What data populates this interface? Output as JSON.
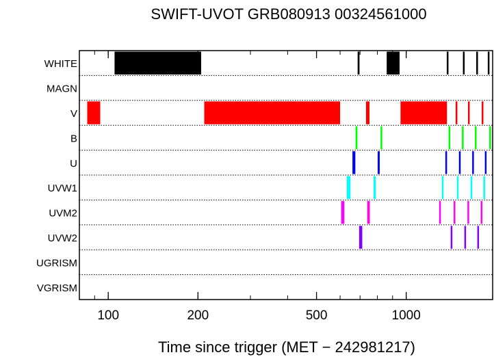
{
  "chart_data": {
    "type": "timeline",
    "title": "SWIFT-UVOT GRB080913 00324561000",
    "xlabel": "Time since trigger (MET − 242981217)",
    "ylabel": "",
    "x_scale": "log",
    "xlim": [
      80,
      1950
    ],
    "x_ticks": [
      100,
      200,
      500,
      1000
    ],
    "x_tick_labels": [
      "100",
      "200",
      "500",
      "1000"
    ],
    "grid": "dotted row separators",
    "rows": [
      {
        "label": "WHITE",
        "color": "#000000",
        "intervals": [
          [
            105,
            205
          ],
          [
            687,
            697
          ],
          [
            860,
            950
          ],
          [
            1368,
            1376
          ],
          [
            1550,
            1558
          ],
          [
            1718,
            1726
          ],
          [
            1878,
            1886
          ]
        ]
      },
      {
        "label": "MAGN",
        "color": "#000000",
        "intervals": []
      },
      {
        "label": "V",
        "color": "#ff0000",
        "intervals": [
          [
            85,
            94
          ],
          [
            210,
            600
          ],
          [
            733,
            753
          ],
          [
            957,
            1370
          ],
          [
            1465,
            1485
          ],
          [
            1612,
            1632
          ],
          [
            1792,
            1812
          ]
        ]
      },
      {
        "label": "B",
        "color": "#00ff00",
        "intervals": [
          [
            676,
            686
          ],
          [
            820,
            830
          ],
          [
            1387,
            1397
          ],
          [
            1538,
            1548
          ],
          [
            1700,
            1710
          ],
          [
            1900,
            1910
          ]
        ]
      },
      {
        "label": "U",
        "color": "#0000ff",
        "intervals": [
          [
            660,
            675
          ],
          [
            802,
            815
          ],
          [
            1353,
            1363
          ],
          [
            1503,
            1513
          ],
          [
            1665,
            1675
          ],
          [
            1836,
            1846
          ]
        ]
      },
      {
        "label": "UVW1",
        "color": "#00ffff",
        "intervals": [
          [
            632,
            650
          ],
          [
            777,
            790
          ],
          [
            1317,
            1333
          ],
          [
            1479,
            1494
          ],
          [
            1644,
            1658
          ],
          [
            1815,
            1829
          ]
        ]
      },
      {
        "label": "UVM2",
        "color": "#ff00ff",
        "intervals": [
          [
            605,
            620
          ],
          [
            740,
            755
          ],
          [
            1290,
            1303
          ],
          [
            1443,
            1456
          ],
          [
            1605,
            1618
          ],
          [
            1778,
            1791
          ]
        ]
      },
      {
        "label": "UVW2",
        "color": "#8000ff",
        "intervals": [
          [
            695,
            712
          ],
          [
            1410,
            1425
          ],
          [
            1567,
            1582
          ],
          [
            1732,
            1747
          ]
        ]
      },
      {
        "label": "UGRISM",
        "color": "#000000",
        "intervals": []
      },
      {
        "label": "VGRISM",
        "color": "#000000",
        "intervals": []
      }
    ]
  }
}
